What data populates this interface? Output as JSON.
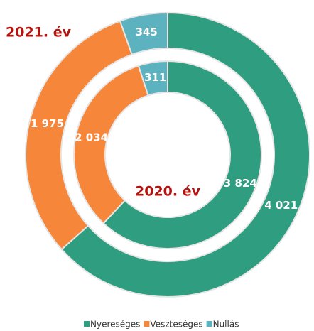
{
  "chart_data": {
    "type": "donut",
    "categories": [
      "Nyereséges",
      "Veszteséges",
      "Nullás"
    ],
    "colors": [
      "#2e9d80",
      "#f5863a",
      "#5cb3bf"
    ],
    "series": [
      {
        "name": "2021. év",
        "values": [
          4021,
          1975,
          345
        ],
        "value_labels": [
          "4 021",
          "1 975",
          "345"
        ]
      },
      {
        "name": "2020. év",
        "values": [
          3824,
          2034,
          311
        ],
        "value_labels": [
          "3 824",
          "2 034",
          "311"
        ]
      }
    ]
  }
}
